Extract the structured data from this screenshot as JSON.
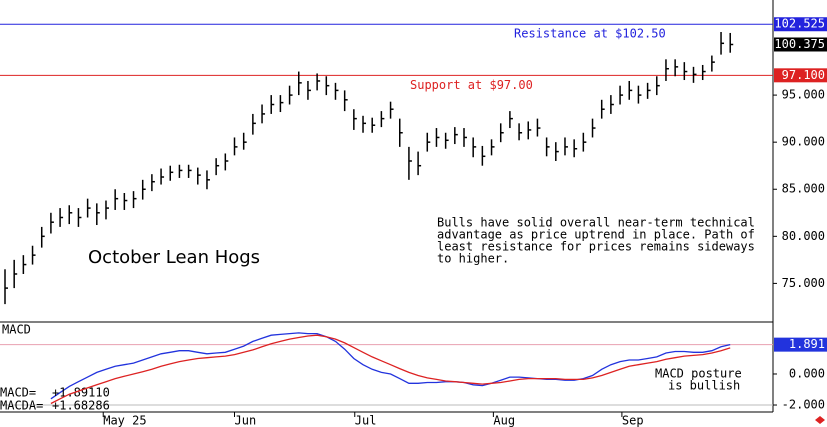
{
  "chart_data": [
    {
      "type": "ohlc",
      "title": "October Lean Hogs",
      "x": [
        0,
        1,
        2,
        3,
        4,
        5,
        6,
        7,
        8,
        9,
        10,
        11,
        12,
        13,
        14,
        15,
        16,
        17,
        18,
        19,
        20,
        21,
        22,
        23,
        24,
        25,
        26,
        27,
        28,
        29,
        30,
        31,
        32,
        33,
        34,
        35,
        36,
        37,
        38,
        39,
        40,
        41,
        42,
        43,
        44,
        45,
        46,
        47,
        48,
        49,
        50,
        51,
        52,
        53,
        54,
        55,
        56,
        57,
        58,
        59,
        60,
        61,
        62,
        63,
        64,
        65,
        66,
        67,
        68,
        69,
        70,
        71,
        72,
        73,
        74,
        75,
        76,
        77,
        78,
        79
      ],
      "high": [
        76.5,
        77.5,
        78,
        79,
        81,
        82.5,
        83,
        83.3,
        83,
        84,
        83.5,
        83.8,
        85,
        84.6,
        84.8,
        86,
        86.6,
        87.2,
        87.5,
        87.6,
        87.6,
        87.3,
        87,
        88.3,
        88.8,
        90.5,
        91,
        93,
        94,
        95,
        95,
        96,
        97.5,
        96.5,
        97.3,
        97,
        96.3,
        95.5,
        93.5,
        92.8,
        92.6,
        93.3,
        94.3,
        92.5,
        89.5,
        89,
        91,
        91.5,
        91,
        91.6,
        91.5,
        90.5,
        89.6,
        90.3,
        92,
        93.3,
        92,
        92.2,
        92.5,
        90.5,
        90,
        90.5,
        90.3,
        91,
        92.5,
        94.5,
        95,
        96,
        96.5,
        96,
        96.3,
        97,
        98.8,
        98.8,
        98.5,
        98,
        98.2,
        99.2,
        101.7,
        101.6
      ],
      "low": [
        72.8,
        74.5,
        76,
        77,
        78.8,
        80.3,
        81,
        81.3,
        81,
        82,
        81.2,
        81.8,
        82.8,
        82.8,
        83,
        83.9,
        84.8,
        85.5,
        85.9,
        86.2,
        86.2,
        85.5,
        85,
        86.5,
        87,
        88.6,
        89.2,
        90.8,
        92,
        93,
        93.2,
        94,
        95,
        94.5,
        95.5,
        95,
        94.5,
        93.3,
        91.3,
        91,
        91,
        91.6,
        92.5,
        89.5,
        86,
        86.5,
        89,
        89.5,
        89.3,
        89.8,
        89.5,
        88.4,
        87.5,
        88.6,
        90,
        91.5,
        90.2,
        90.3,
        90.6,
        88.5,
        88,
        88.6,
        88.4,
        89,
        90.5,
        92.5,
        93,
        94,
        94.5,
        94.1,
        94.6,
        95,
        96.5,
        97,
        96.6,
        96.3,
        96.6,
        97.5,
        99.3,
        99.5
      ],
      "close": [
        74.5,
        76,
        77,
        78,
        80,
        81.5,
        82,
        82.5,
        82,
        83,
        82.5,
        83,
        84,
        83.8,
        84,
        85,
        85.8,
        86.3,
        86.8,
        87,
        87,
        86.5,
        86,
        87.5,
        88,
        89.5,
        90,
        92,
        93,
        94,
        94.2,
        95,
        96.3,
        95.5,
        96.5,
        96,
        95.5,
        94.5,
        92.5,
        92,
        91.8,
        92.5,
        93.5,
        91,
        88,
        87.5,
        90,
        90.5,
        90.2,
        90.8,
        90.5,
        89.5,
        88.5,
        89.5,
        91,
        92.5,
        91,
        91.3,
        91.5,
        89.5,
        89,
        89.5,
        89.3,
        90,
        91.5,
        93.5,
        94,
        95,
        95.5,
        95,
        95.5,
        96,
        97.8,
        98,
        97.5,
        97.2,
        97.5,
        98.5,
        100.5,
        100.375
      ],
      "color": "#000000",
      "xlim": [
        -0.545,
        83.66
      ],
      "ylim": [
        70.9,
        105.1
      ],
      "yticks": [
        {
          "value": 95,
          "label": "95.000"
        },
        {
          "value": 90,
          "label": "90.000"
        },
        {
          "value": 85,
          "label": "85.000"
        },
        {
          "value": 80,
          "label": "80.000"
        },
        {
          "value": 75,
          "label": "75.000"
        }
      ],
      "hlines": [
        {
          "value": 102.525,
          "label": "102.525",
          "color": "#2222dd",
          "text": "Resistance at $102.50"
        },
        {
          "value": 97.1,
          "label": "97.100",
          "color": "#dd2222",
          "text": "Support at $97.00"
        }
      ],
      "last": {
        "value": 100.375,
        "label": "100.375"
      },
      "annotation": [
        "Bulls have solid overall near-term technical",
        "advantage as price uptrend in place. Path of",
        "least resistance for prices remains sideways",
        "to higher."
      ]
    },
    {
      "type": "line",
      "title": "MACD",
      "x": [
        0,
        1,
        2,
        3,
        4,
        5,
        6,
        7,
        8,
        9,
        10,
        11,
        12,
        13,
        14,
        15,
        16,
        17,
        18,
        19,
        20,
        21,
        22,
        23,
        24,
        25,
        26,
        27,
        28,
        29,
        30,
        31,
        32,
        33,
        34,
        35,
        36,
        37,
        38,
        39,
        40,
        41,
        42,
        43,
        44,
        45,
        46,
        47,
        48,
        49,
        50,
        51,
        52,
        53,
        54,
        55,
        56,
        57,
        58,
        59,
        60,
        61,
        62,
        63,
        64,
        65,
        66,
        67,
        68,
        69,
        70,
        71,
        72,
        73,
        74,
        75,
        76,
        77,
        78,
        79
      ],
      "series": [
        {
          "name": "MACD=",
          "value_label": "+1.89110",
          "color": "#2233dd",
          "values": [
            null,
            null,
            null,
            null,
            null,
            -1.6,
            -1.2,
            -0.8,
            -0.5,
            -0.2,
            0.1,
            0.3,
            0.5,
            0.6,
            0.7,
            0.9,
            1.1,
            1.3,
            1.4,
            1.5,
            1.5,
            1.4,
            1.3,
            1.35,
            1.4,
            1.6,
            1.8,
            2.1,
            2.3,
            2.5,
            2.55,
            2.6,
            2.65,
            2.6,
            2.6,
            2.4,
            2.1,
            1.6,
            1.0,
            0.6,
            0.3,
            0.1,
            0.0,
            -0.3,
            -0.6,
            -0.6,
            -0.55,
            -0.55,
            -0.5,
            -0.5,
            -0.55,
            -0.7,
            -0.75,
            -0.6,
            -0.4,
            -0.2,
            -0.2,
            -0.25,
            -0.3,
            -0.35,
            -0.35,
            -0.4,
            -0.4,
            -0.3,
            -0.1,
            0.3,
            0.6,
            0.8,
            0.9,
            0.9,
            1.0,
            1.1,
            1.35,
            1.45,
            1.45,
            1.4,
            1.4,
            1.5,
            1.75,
            1.8911
          ]
        },
        {
          "name": "MACDA=",
          "value_label": "+1.68286",
          "color": "#dd2222",
          "values": [
            null,
            null,
            null,
            null,
            null,
            -1.9,
            -1.6,
            -1.3,
            -1.1,
            -0.9,
            -0.7,
            -0.5,
            -0.3,
            -0.15,
            0.0,
            0.15,
            0.3,
            0.5,
            0.65,
            0.8,
            0.9,
            1.0,
            1.05,
            1.1,
            1.15,
            1.25,
            1.4,
            1.55,
            1.75,
            1.95,
            2.1,
            2.25,
            2.35,
            2.45,
            2.5,
            2.4,
            2.25,
            2.0,
            1.7,
            1.4,
            1.1,
            0.85,
            0.6,
            0.35,
            0.1,
            -0.1,
            -0.25,
            -0.35,
            -0.45,
            -0.5,
            -0.55,
            -0.6,
            -0.65,
            -0.6,
            -0.55,
            -0.45,
            -0.35,
            -0.3,
            -0.3,
            -0.3,
            -0.3,
            -0.35,
            -0.35,
            -0.35,
            -0.25,
            -0.1,
            0.1,
            0.3,
            0.5,
            0.6,
            0.7,
            0.8,
            0.95,
            1.05,
            1.15,
            1.2,
            1.25,
            1.35,
            1.5,
            1.68286
          ]
        }
      ],
      "xlim": [
        -0.545,
        83.66
      ],
      "ylim": [
        -2.45,
        3.35
      ],
      "yticks": [
        {
          "value": 0,
          "label": "0.000"
        },
        {
          "value": -2,
          "label": "-2.000"
        }
      ],
      "last": {
        "value": 1.891,
        "label": "1.891"
      },
      "annotation": [
        "MACD posture",
        "is bullish"
      ],
      "xticks": [
        {
          "value": 10.7,
          "label": "May 25"
        },
        {
          "value": 25,
          "label": "Jun"
        },
        {
          "value": 38.1,
          "label": "Jul"
        },
        {
          "value": 53.2,
          "label": "Aug"
        },
        {
          "value": 67.2,
          "label": "Sep"
        }
      ]
    }
  ]
}
